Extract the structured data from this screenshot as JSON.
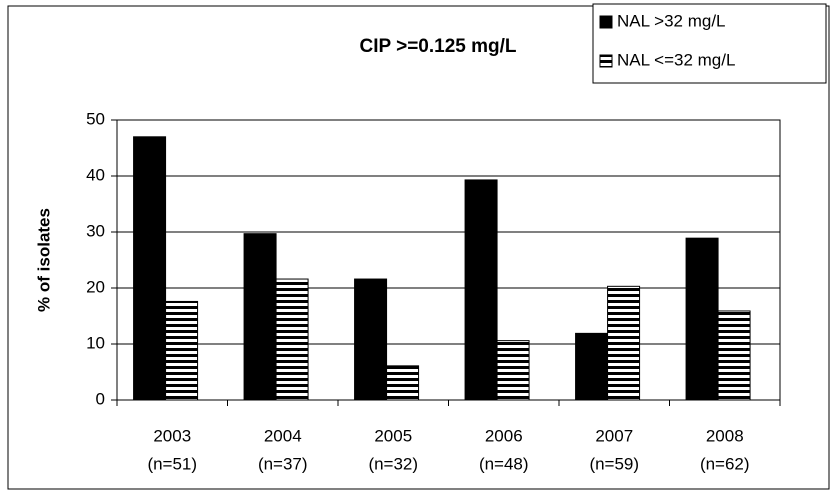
{
  "chart_data": {
    "type": "bar",
    "title": "CIP >=0.125 mg/L",
    "y_label": "% of isolates",
    "categories": [
      [
        "2003",
        "(n=51)"
      ],
      [
        "2004",
        "(n=37)"
      ],
      [
        "2005",
        "(n=32)"
      ],
      [
        "2006",
        "(n=48)"
      ],
      [
        "2007",
        "(n=59)"
      ],
      [
        "2008",
        "(n=62)"
      ]
    ],
    "series": [
      {
        "name": "NAL >32 mg/L",
        "color": "#000000",
        "pattern": "solid",
        "values": [
          47,
          29.7,
          21.6,
          39.3,
          11.9,
          28.9
        ]
      },
      {
        "name": "NAL <=32 mg/L",
        "color": "#000000",
        "pattern": "horizontal-stripes",
        "values": [
          17.6,
          21.6,
          6.1,
          10.6,
          20.3,
          15.9
        ]
      }
    ],
    "ylim": [
      0,
      50
    ],
    "yticks": [
      0,
      10,
      20,
      30,
      40,
      50
    ],
    "grid": true,
    "legend": "top-right"
  }
}
